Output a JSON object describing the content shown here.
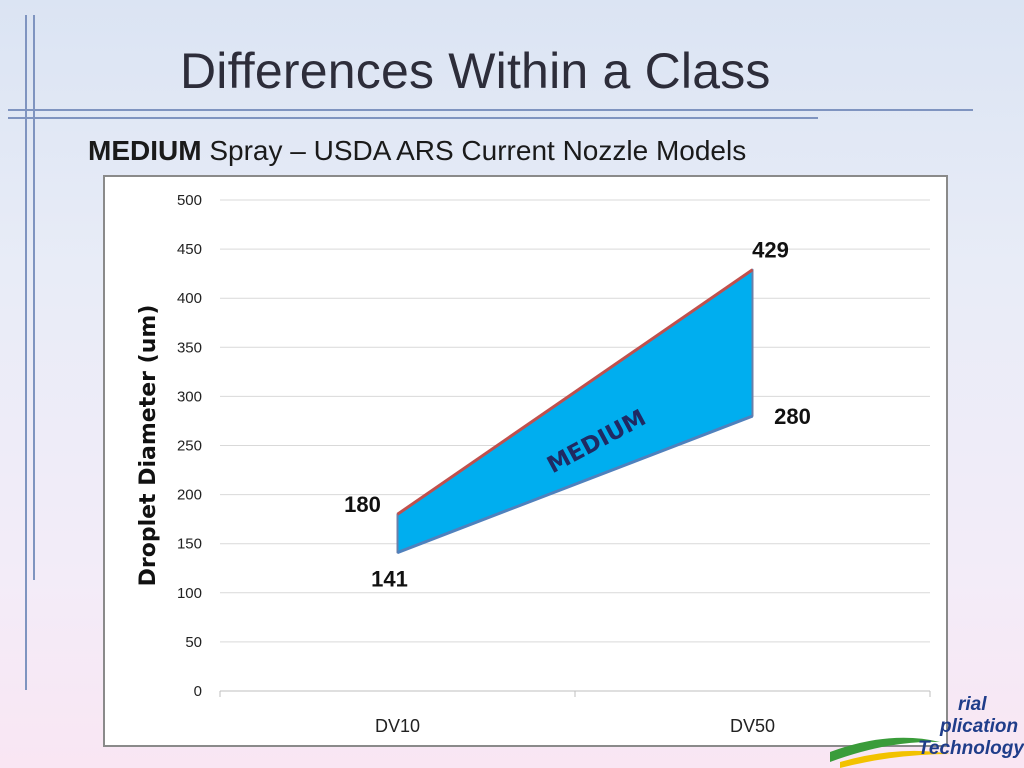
{
  "slide": {
    "title": "Differences Within a Class",
    "subtitle_bold": "MEDIUM",
    "subtitle_rest": " Spray – USDA ARS Current Nozzle Models"
  },
  "logo": {
    "line1": "rial",
    "line2": "plication",
    "line3": "Technology"
  },
  "colors": {
    "band_fill": "#00aeef",
    "upper_line": "#c0504d",
    "lower_line": "#4f81bd",
    "gridline": "#d9d9d9",
    "band_label": "#1f2a63"
  },
  "chart_data": {
    "type": "area",
    "categories": [
      "DV10",
      "DV50"
    ],
    "series": [
      {
        "values": [
          180,
          429
        ]
      },
      {
        "values": [
          141,
          280
        ]
      }
    ],
    "ylabel": "Droplet Diameter (um)",
    "ylim": [
      0,
      500
    ],
    "yticks": [
      0,
      50,
      100,
      150,
      200,
      250,
      300,
      350,
      400,
      450,
      500
    ],
    "grid": true,
    "band_label": "MEDIUM",
    "data_labels": [
      "180",
      "429",
      "141",
      "280"
    ]
  }
}
